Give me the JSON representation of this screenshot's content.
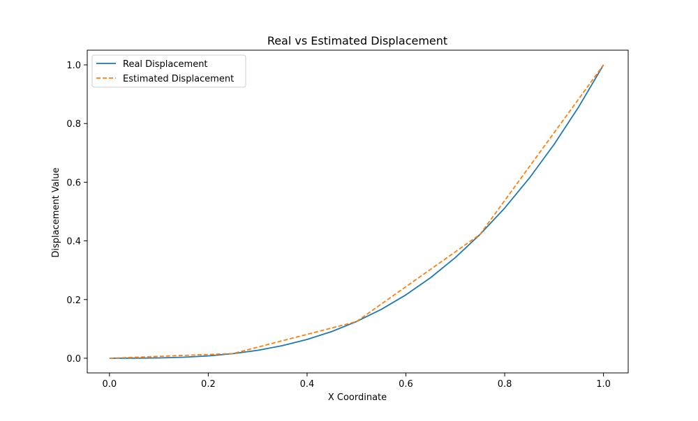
{
  "chart_data": {
    "type": "line",
    "title": "Real vs Estimated Displacement",
    "xlabel": "X Coordinate",
    "ylabel": "Displacement Value",
    "xlim": [
      -0.045,
      1.05
    ],
    "ylim": [
      -0.05,
      1.05
    ],
    "xticks": [
      0.0,
      0.2,
      0.4,
      0.6,
      0.8,
      1.0
    ],
    "yticks": [
      0.0,
      0.2,
      0.4,
      0.6,
      0.8,
      1.0
    ],
    "xtick_labels": [
      "0.0",
      "0.2",
      "0.4",
      "0.6",
      "0.8",
      "1.0"
    ],
    "ytick_labels": [
      "0.0",
      "0.2",
      "0.4",
      "0.6",
      "0.8",
      "1.0"
    ],
    "grid": false,
    "legend_position": "top-left",
    "series": [
      {
        "name": "Real Displacement",
        "color": "#1f77b4",
        "style": "solid",
        "x": [
          0.0,
          0.05,
          0.1,
          0.15,
          0.2,
          0.25,
          0.3,
          0.35,
          0.4,
          0.45,
          0.5,
          0.55,
          0.6,
          0.65,
          0.7,
          0.75,
          0.8,
          0.85,
          0.9,
          0.95,
          1.0
        ],
        "y": [
          0.0,
          0.0001,
          0.001,
          0.0034,
          0.008,
          0.0156,
          0.027,
          0.0429,
          0.064,
          0.0911,
          0.125,
          0.1664,
          0.216,
          0.2746,
          0.343,
          0.4219,
          0.512,
          0.6141,
          0.729,
          0.8574,
          1.0
        ]
      },
      {
        "name": "Estimated Displacement",
        "color": "#ff7f0e",
        "style": "dashed",
        "x": [
          0.0,
          0.25,
          0.5,
          0.75,
          1.0
        ],
        "y": [
          0.0,
          0.016,
          0.125,
          0.422,
          1.0
        ]
      }
    ]
  }
}
